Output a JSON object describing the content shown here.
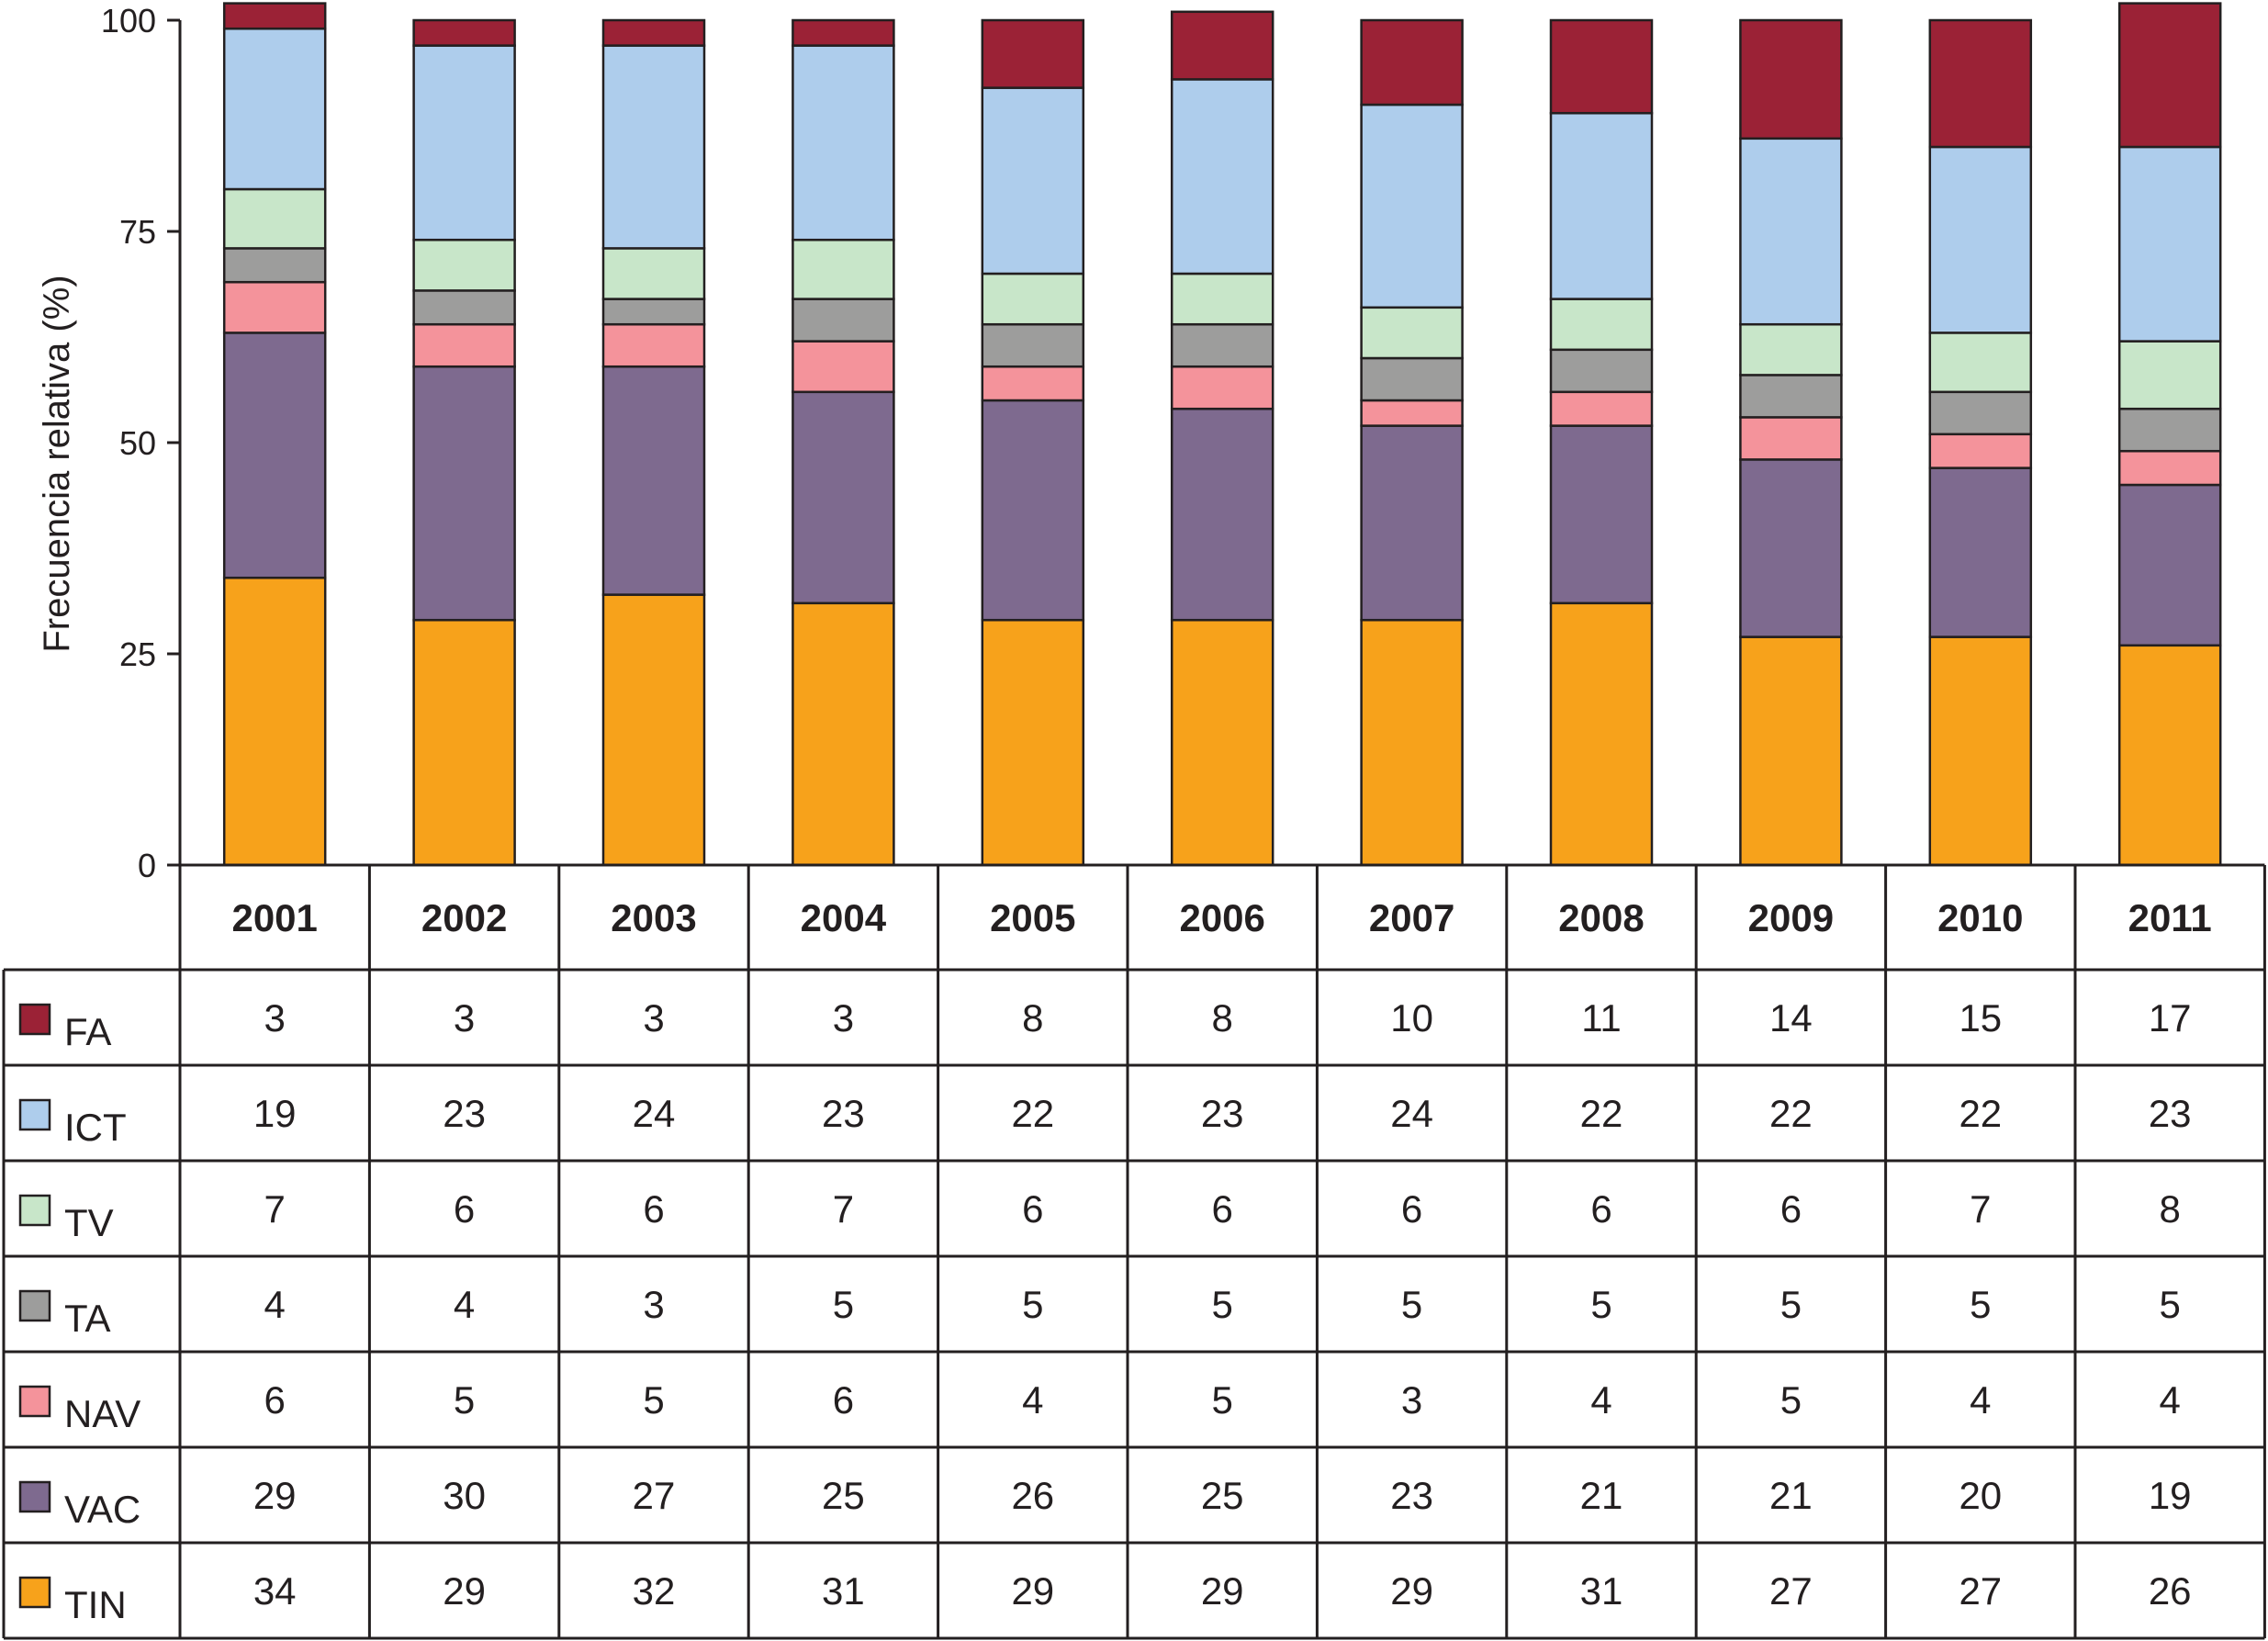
{
  "chart_data": {
    "type": "bar",
    "stacked": true,
    "ylabel": "Frecuencia relativa (%)",
    "ylim": [
      0,
      100
    ],
    "yticks": [
      0,
      25,
      50,
      75,
      100
    ],
    "categories": [
      "2001",
      "2002",
      "2003",
      "2004",
      "2005",
      "2006",
      "2007",
      "2008",
      "2009",
      "2010",
      "2011"
    ],
    "series": [
      {
        "name": "TIN",
        "color": "#f7a21b",
        "values": [
          34,
          29,
          32,
          31,
          29,
          29,
          29,
          31,
          27,
          27,
          26
        ]
      },
      {
        "name": "VAC",
        "color": "#7e6a8f",
        "values": [
          29,
          30,
          27,
          25,
          26,
          25,
          23,
          21,
          21,
          20,
          19
        ]
      },
      {
        "name": "NAV",
        "color": "#f4939b",
        "values": [
          6,
          5,
          5,
          6,
          4,
          5,
          3,
          4,
          5,
          4,
          4
        ]
      },
      {
        "name": "TA",
        "color": "#9d9d9c",
        "values": [
          4,
          4,
          3,
          5,
          5,
          5,
          5,
          5,
          5,
          5,
          5
        ]
      },
      {
        "name": "TV",
        "color": "#c8e6c9",
        "values": [
          7,
          6,
          6,
          7,
          6,
          6,
          6,
          6,
          6,
          7,
          8
        ]
      },
      {
        "name": "ICT",
        "color": "#aecdec",
        "values": [
          19,
          23,
          24,
          23,
          22,
          23,
          24,
          22,
          22,
          22,
          23
        ]
      },
      {
        "name": "FA",
        "color": "#9b2236",
        "values": [
          3,
          3,
          3,
          3,
          8,
          8,
          10,
          11,
          14,
          15,
          17
        ]
      }
    ],
    "table_row_order": [
      "FA",
      "ICT",
      "TV",
      "TA",
      "NAV",
      "VAC",
      "TIN"
    ],
    "legend": "table-rows-left",
    "grid": false
  }
}
